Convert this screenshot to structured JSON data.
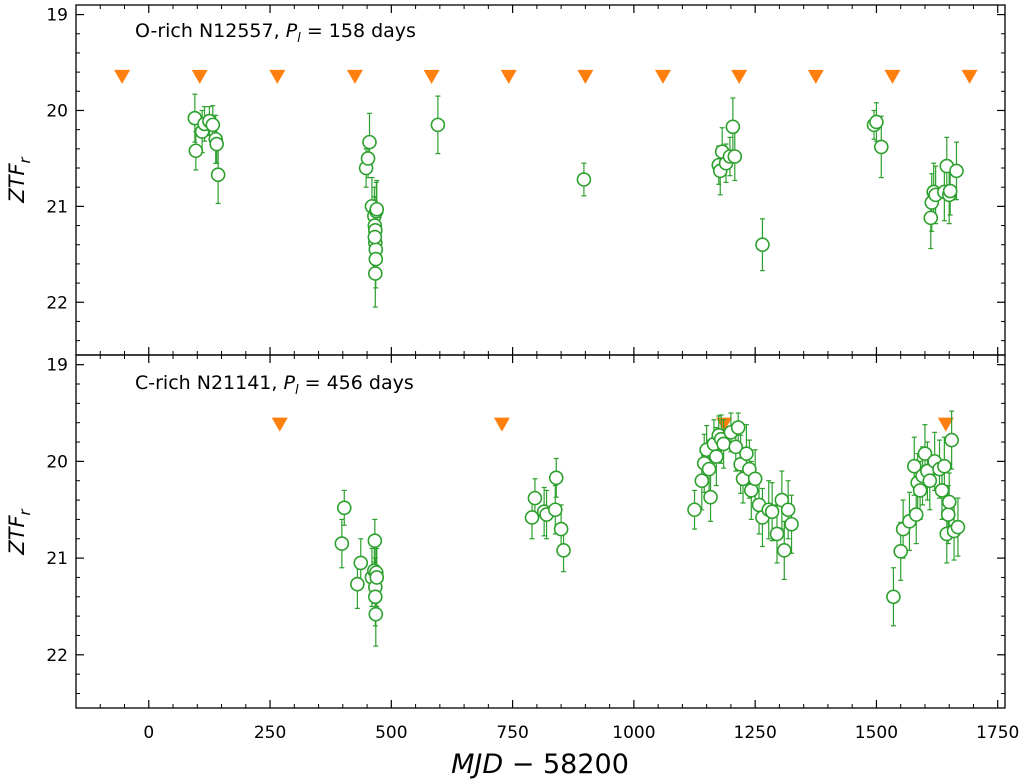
{
  "chart_data": {
    "type": "scatter",
    "xlabel_italic": "MJD",
    "xlabel_rest": " − 58200",
    "xlim": [
      -150,
      1765
    ],
    "xticks": [
      0,
      250,
      500,
      750,
      1000,
      1250,
      1500,
      1750
    ],
    "marker_color": "#2ca02c",
    "triangle_color": "#ff7f0e",
    "panels": [
      {
        "title_prefix": "O-rich N12557, ",
        "title_p": "P",
        "title_sub": "l",
        "title_value": " = 158 days",
        "ylabel": "ZTF",
        "ylabel_sub": "r",
        "ylim": [
          22.55,
          18.9
        ],
        "yticks": [
          19,
          20,
          21,
          22
        ],
        "triangle_mag": 19.65,
        "triangles_x": [
          -55,
          105,
          265,
          425,
          583,
          742,
          900,
          1060,
          1217,
          1375,
          1533,
          1692
        ],
        "points": [
          {
            "x": 95,
            "y": 20.08,
            "e": 0.25
          },
          {
            "x": 97,
            "y": 20.42,
            "e": 0.2
          },
          {
            "x": 110,
            "y": 20.22,
            "e": 0.22
          },
          {
            "x": 115,
            "y": 20.14,
            "e": 0.18
          },
          {
            "x": 125,
            "y": 20.11,
            "e": 0.15
          },
          {
            "x": 132,
            "y": 20.15,
            "e": 0.2
          },
          {
            "x": 138,
            "y": 20.3,
            "e": 0.25
          },
          {
            "x": 140,
            "y": 20.35,
            "e": 0.2
          },
          {
            "x": 143,
            "y": 20.67,
            "e": 0.3
          },
          {
            "x": 448,
            "y": 20.6,
            "e": 0.2
          },
          {
            "x": 452,
            "y": 20.5,
            "e": 0.2
          },
          {
            "x": 455,
            "y": 20.33,
            "e": 0.3
          },
          {
            "x": 460,
            "y": 21.0,
            "e": 0.3
          },
          {
            "x": 465,
            "y": 21.1,
            "e": 0.3
          },
          {
            "x": 466,
            "y": 21.2,
            "e": 0.3
          },
          {
            "x": 467,
            "y": 21.25,
            "e": 0.3
          },
          {
            "x": 467,
            "y": 21.38,
            "e": 0.3
          },
          {
            "x": 468,
            "y": 21.45,
            "e": 0.3
          },
          {
            "x": 468,
            "y": 21.55,
            "e": 0.3
          },
          {
            "x": 467,
            "y": 21.7,
            "e": 0.35
          },
          {
            "x": 469,
            "y": 21.05,
            "e": 0.3
          },
          {
            "x": 470,
            "y": 21.03,
            "e": 0.3
          },
          {
            "x": 466,
            "y": 21.32,
            "e": 0.3
          },
          {
            "x": 596,
            "y": 20.15,
            "e": 0.3
          },
          {
            "x": 897,
            "y": 20.72,
            "e": 0.17
          },
          {
            "x": 1175,
            "y": 20.57,
            "e": 0.2
          },
          {
            "x": 1178,
            "y": 20.63,
            "e": 0.25
          },
          {
            "x": 1182,
            "y": 20.43,
            "e": 0.25
          },
          {
            "x": 1190,
            "y": 20.55,
            "e": 0.2
          },
          {
            "x": 1198,
            "y": 20.48,
            "e": 0.2
          },
          {
            "x": 1204,
            "y": 20.17,
            "e": 0.3
          },
          {
            "x": 1208,
            "y": 20.48,
            "e": 0.25
          },
          {
            "x": 1265,
            "y": 21.4,
            "e": 0.27
          },
          {
            "x": 1495,
            "y": 20.15,
            "e": 0.15
          },
          {
            "x": 1500,
            "y": 20.12,
            "e": 0.2
          },
          {
            "x": 1510,
            "y": 20.38,
            "e": 0.32
          },
          {
            "x": 1612,
            "y": 21.12,
            "e": 0.32
          },
          {
            "x": 1614,
            "y": 20.96,
            "e": 0.3
          },
          {
            "x": 1618,
            "y": 20.85,
            "e": 0.3
          },
          {
            "x": 1622,
            "y": 20.88,
            "e": 0.3
          },
          {
            "x": 1640,
            "y": 20.85,
            "e": 0.3
          },
          {
            "x": 1645,
            "y": 20.58,
            "e": 0.3
          },
          {
            "x": 1650,
            "y": 20.88,
            "e": 0.3
          },
          {
            "x": 1652,
            "y": 20.84,
            "e": 0.25
          },
          {
            "x": 1665,
            "y": 20.63,
            "e": 0.3
          }
        ]
      },
      {
        "title_prefix": "C-rich N21141, ",
        "title_p": "P",
        "title_sub": "l",
        "title_value": " = 456 days",
        "ylabel": "ZTF",
        "ylabel_sub": "r",
        "ylim": [
          22.55,
          18.9
        ],
        "yticks": [
          19,
          20,
          21,
          22
        ],
        "triangle_mag": 19.62,
        "triangles_x": [
          270,
          728,
          1186,
          1643
        ],
        "points": [
          {
            "x": 398,
            "y": 20.85,
            "e": 0.25
          },
          {
            "x": 403,
            "y": 20.48,
            "e": 0.18
          },
          {
            "x": 430,
            "y": 21.27,
            "e": 0.25
          },
          {
            "x": 437,
            "y": 21.05,
            "e": 0.25
          },
          {
            "x": 460,
            "y": 21.2,
            "e": 0.3
          },
          {
            "x": 465,
            "y": 21.13,
            "e": 0.3
          },
          {
            "x": 466,
            "y": 20.82,
            "e": 0.22
          },
          {
            "x": 467,
            "y": 21.3,
            "e": 0.3
          },
          {
            "x": 467,
            "y": 21.4,
            "e": 0.3
          },
          {
            "x": 468,
            "y": 21.58,
            "e": 0.33
          },
          {
            "x": 469,
            "y": 21.15,
            "e": 0.3
          },
          {
            "x": 470,
            "y": 21.2,
            "e": 0.3
          },
          {
            "x": 790,
            "y": 20.58,
            "e": 0.22
          },
          {
            "x": 796,
            "y": 20.38,
            "e": 0.2
          },
          {
            "x": 815,
            "y": 20.52,
            "e": 0.25
          },
          {
            "x": 820,
            "y": 20.55,
            "e": 0.25
          },
          {
            "x": 838,
            "y": 20.5,
            "e": 0.25
          },
          {
            "x": 840,
            "y": 20.17,
            "e": 0.2
          },
          {
            "x": 850,
            "y": 20.7,
            "e": 0.25
          },
          {
            "x": 855,
            "y": 20.92,
            "e": 0.22
          },
          {
            "x": 1125,
            "y": 20.5,
            "e": 0.2
          },
          {
            "x": 1140,
            "y": 20.2,
            "e": 0.3
          },
          {
            "x": 1145,
            "y": 20.02,
            "e": 0.3
          },
          {
            "x": 1150,
            "y": 19.88,
            "e": 0.25
          },
          {
            "x": 1155,
            "y": 20.08,
            "e": 0.3
          },
          {
            "x": 1158,
            "y": 20.37,
            "e": 0.25
          },
          {
            "x": 1165,
            "y": 19.82,
            "e": 0.25
          },
          {
            "x": 1170,
            "y": 19.95,
            "e": 0.3
          },
          {
            "x": 1175,
            "y": 19.73,
            "e": 0.2
          },
          {
            "x": 1180,
            "y": 19.77,
            "e": 0.25
          },
          {
            "x": 1185,
            "y": 19.82,
            "e": 0.25
          },
          {
            "x": 1200,
            "y": 19.7,
            "e": 0.2
          },
          {
            "x": 1210,
            "y": 19.85,
            "e": 0.25
          },
          {
            "x": 1215,
            "y": 19.65,
            "e": 0.15
          },
          {
            "x": 1220,
            "y": 20.03,
            "e": 0.3
          },
          {
            "x": 1225,
            "y": 20.18,
            "e": 0.25
          },
          {
            "x": 1232,
            "y": 19.92,
            "e": 0.3
          },
          {
            "x": 1238,
            "y": 20.08,
            "e": 0.3
          },
          {
            "x": 1242,
            "y": 20.3,
            "e": 0.3
          },
          {
            "x": 1250,
            "y": 20.18,
            "e": 0.3
          },
          {
            "x": 1258,
            "y": 20.45,
            "e": 0.3
          },
          {
            "x": 1265,
            "y": 20.58,
            "e": 0.3
          },
          {
            "x": 1278,
            "y": 20.5,
            "e": 0.3
          },
          {
            "x": 1285,
            "y": 20.52,
            "e": 0.3
          },
          {
            "x": 1295,
            "y": 20.75,
            "e": 0.3
          },
          {
            "x": 1305,
            "y": 20.4,
            "e": 0.3
          },
          {
            "x": 1310,
            "y": 20.92,
            "e": 0.3
          },
          {
            "x": 1318,
            "y": 20.5,
            "e": 0.3
          },
          {
            "x": 1325,
            "y": 20.65,
            "e": 0.3
          },
          {
            "x": 1535,
            "y": 21.4,
            "e": 0.3
          },
          {
            "x": 1550,
            "y": 20.93,
            "e": 0.3
          },
          {
            "x": 1555,
            "y": 20.7,
            "e": 0.3
          },
          {
            "x": 1568,
            "y": 20.62,
            "e": 0.3
          },
          {
            "x": 1578,
            "y": 20.05,
            "e": 0.3
          },
          {
            "x": 1582,
            "y": 20.55,
            "e": 0.3
          },
          {
            "x": 1585,
            "y": 20.22,
            "e": 0.3
          },
          {
            "x": 1590,
            "y": 20.3,
            "e": 0.3
          },
          {
            "x": 1595,
            "y": 20.15,
            "e": 0.3
          },
          {
            "x": 1600,
            "y": 19.92,
            "e": 0.3
          },
          {
            "x": 1605,
            "y": 20.1,
            "e": 0.3
          },
          {
            "x": 1610,
            "y": 20.2,
            "e": 0.3
          },
          {
            "x": 1620,
            "y": 20.0,
            "e": 0.3
          },
          {
            "x": 1630,
            "y": 20.08,
            "e": 0.3
          },
          {
            "x": 1635,
            "y": 20.3,
            "e": 0.3
          },
          {
            "x": 1640,
            "y": 20.05,
            "e": 0.3
          },
          {
            "x": 1645,
            "y": 20.75,
            "e": 0.3
          },
          {
            "x": 1648,
            "y": 20.55,
            "e": 0.3
          },
          {
            "x": 1650,
            "y": 20.42,
            "e": 0.3
          },
          {
            "x": 1655,
            "y": 19.78,
            "e": 0.3
          },
          {
            "x": 1660,
            "y": 20.72,
            "e": 0.3
          },
          {
            "x": 1668,
            "y": 20.68,
            "e": 0.3
          }
        ]
      }
    ]
  }
}
